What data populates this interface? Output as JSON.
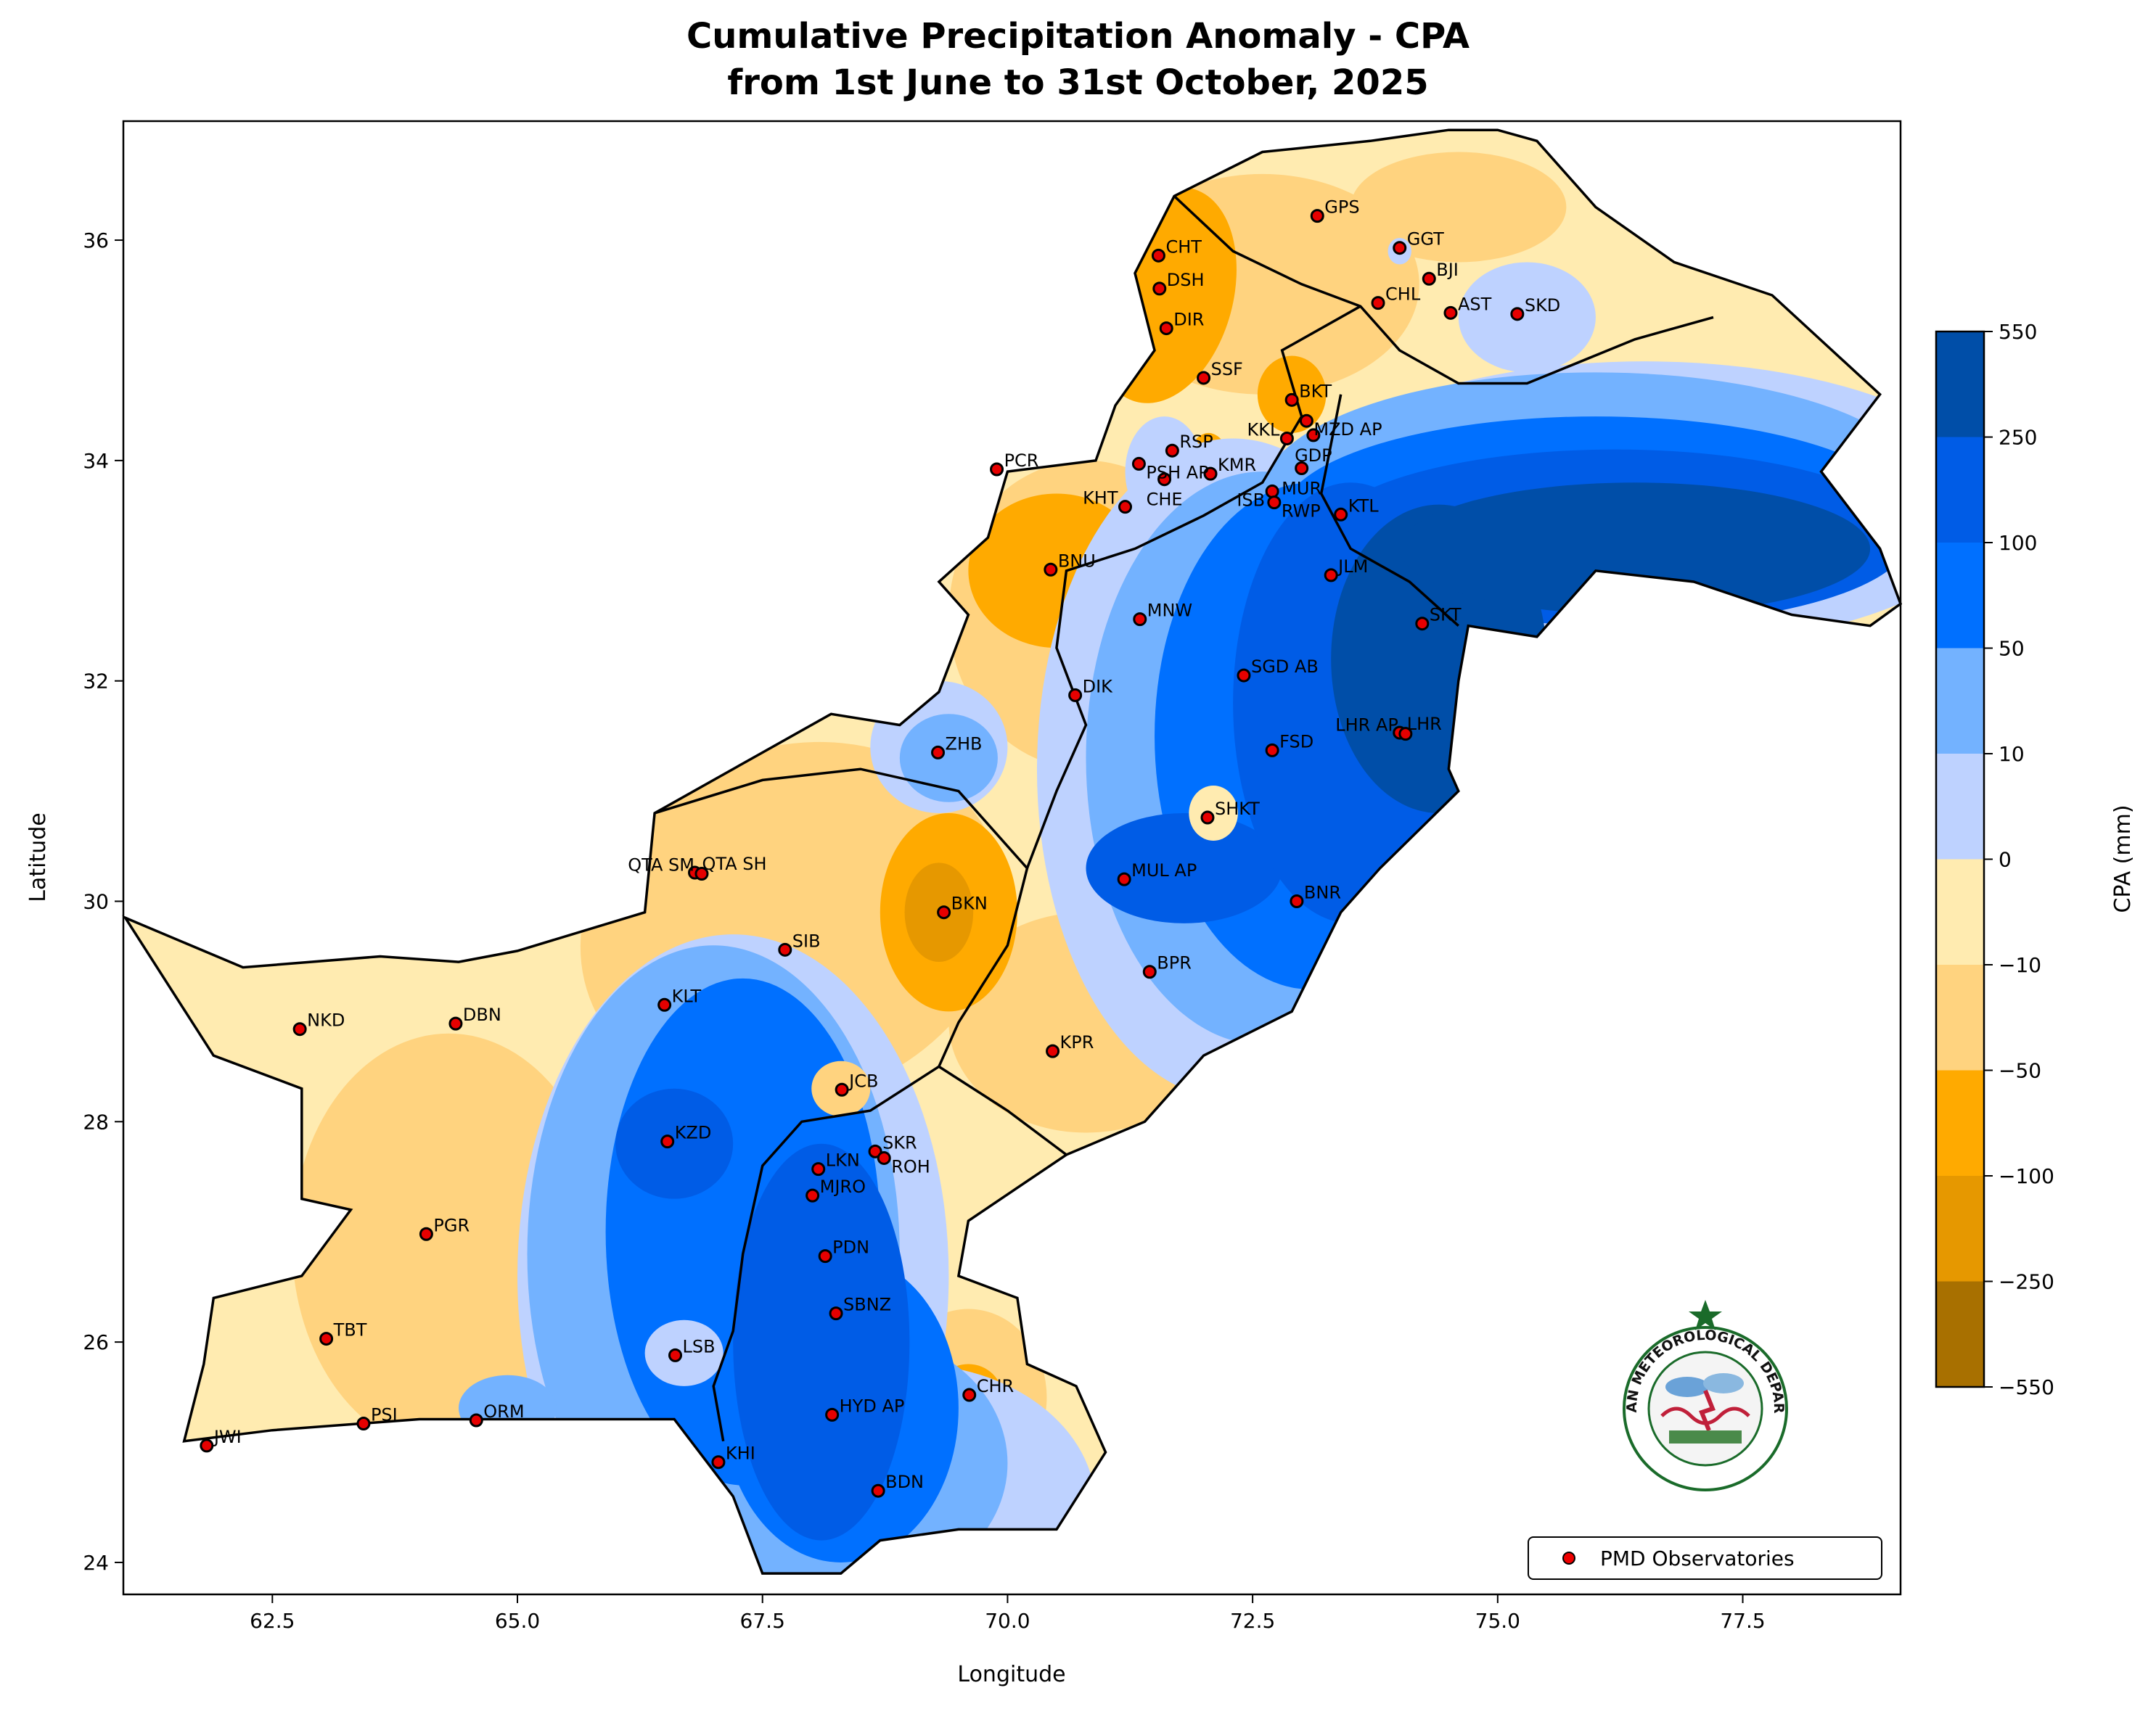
{
  "title": {
    "line1": "Cumulative Precipitation Anomaly - CPA",
    "line2": "from 1st June to 31st October, 2025"
  },
  "chart_data": {
    "type": "map",
    "title": "Cumulative Precipitation Anomaly - CPA from 1st June to 31st October, 2025",
    "xlabel": "Longitude",
    "ylabel": "Latitude",
    "xlim": [
      60.98,
      79.11
    ],
    "ylim": [
      23.71,
      37.08
    ],
    "xticks": [
      "62.5",
      "65.0",
      "67.5",
      "70.0",
      "72.5",
      "75.0",
      "77.5"
    ],
    "yticks": [
      "24",
      "26",
      "28",
      "30",
      "32",
      "34",
      "36"
    ],
    "grid": false,
    "colorbar": {
      "label": "CPA (mm)",
      "levels": [
        "550",
        "250",
        "100",
        "50",
        "10",
        "0",
        "−10",
        "−50",
        "−100",
        "−250",
        "−550"
      ],
      "colors": [
        "#004ea8",
        "#005ce6",
        "#0070ff",
        "#73b2ff",
        "#bed2ff",
        "#ffebb0",
        "#ffd37f",
        "#ffaa00",
        "#e69800",
        "#a87000"
      ]
    },
    "legend": {
      "label": "PMD Observatories",
      "position": "bottom-right",
      "marker_color": "#e60000"
    },
    "stations": [
      {
        "name": "GPS",
        "lon": 73.16,
        "lat": 36.22
      },
      {
        "name": "GGT",
        "lon": 74.0,
        "lat": 35.93
      },
      {
        "name": "BJI",
        "lon": 74.3,
        "lat": 35.65
      },
      {
        "name": "CHL",
        "lon": 73.78,
        "lat": 35.43
      },
      {
        "name": "AST",
        "lon": 74.52,
        "lat": 35.34
      },
      {
        "name": "SKD",
        "lon": 75.2,
        "lat": 35.33
      },
      {
        "name": "CHT",
        "lon": 71.54,
        "lat": 35.86
      },
      {
        "name": "DSH",
        "lon": 71.55,
        "lat": 35.56
      },
      {
        "name": "DIR",
        "lon": 71.62,
        "lat": 35.2
      },
      {
        "name": "SSF",
        "lon": 72.0,
        "lat": 34.75
      },
      {
        "name": "BKT",
        "lon": 72.9,
        "lat": 34.55
      },
      {
        "name": "MZD AP",
        "lon": 73.05,
        "lat": 34.36
      },
      {
        "name": "KKL",
        "lon": 72.85,
        "lat": 34.2
      },
      {
        "name": "GDP",
        "lon": 73.12,
        "lat": 34.23
      },
      {
        "name": "RSP",
        "lon": 71.68,
        "lat": 34.09
      },
      {
        "name": "PSH AP",
        "lon": 71.34,
        "lat": 33.97
      },
      {
        "name": "CHE",
        "lon": 71.6,
        "lat": 33.83
      },
      {
        "name": "KMR",
        "lon": 72.07,
        "lat": 33.88
      },
      {
        "name": "PCR",
        "lon": 69.89,
        "lat": 33.92
      },
      {
        "name": "KHT",
        "lon": 71.2,
        "lat": 33.58
      },
      {
        "name": "MUR",
        "lon": 73.0,
        "lat": 33.93
      },
      {
        "name": "ISB",
        "lon": 72.7,
        "lat": 33.72
      },
      {
        "name": "RWP",
        "lon": 72.72,
        "lat": 33.62
      },
      {
        "name": "KTL",
        "lon": 73.4,
        "lat": 33.51
      },
      {
        "name": "JLM",
        "lon": 73.3,
        "lat": 32.96
      },
      {
        "name": "BNU",
        "lon": 70.44,
        "lat": 33.01
      },
      {
        "name": "MNW",
        "lon": 71.35,
        "lat": 32.56
      },
      {
        "name": "SKT",
        "lon": 74.23,
        "lat": 32.52
      },
      {
        "name": "SGD AB",
        "lon": 72.41,
        "lat": 32.05
      },
      {
        "name": "DIK",
        "lon": 70.69,
        "lat": 31.87
      },
      {
        "name": "LHR",
        "lon": 74.0,
        "lat": 31.53
      },
      {
        "name": "LHR AP",
        "lon": 74.06,
        "lat": 31.52
      },
      {
        "name": "ZHB",
        "lon": 69.29,
        "lat": 31.35
      },
      {
        "name": "FSD",
        "lon": 72.7,
        "lat": 31.37
      },
      {
        "name": "SHKT",
        "lon": 72.04,
        "lat": 30.76
      },
      {
        "name": "QTA SH",
        "lon": 66.81,
        "lat": 30.26
      },
      {
        "name": "QTA SM",
        "lon": 66.88,
        "lat": 30.25
      },
      {
        "name": "MUL AP",
        "lon": 71.19,
        "lat": 30.2
      },
      {
        "name": "BNR",
        "lon": 72.95,
        "lat": 30.0
      },
      {
        "name": "BKN",
        "lon": 69.35,
        "lat": 29.9
      },
      {
        "name": "SIB",
        "lon": 67.73,
        "lat": 29.56
      },
      {
        "name": "BPR",
        "lon": 71.45,
        "lat": 29.36
      },
      {
        "name": "KLT",
        "lon": 66.5,
        "lat": 29.06
      },
      {
        "name": "NKD",
        "lon": 62.78,
        "lat": 28.84
      },
      {
        "name": "DBN",
        "lon": 64.37,
        "lat": 28.89
      },
      {
        "name": "KPR",
        "lon": 70.46,
        "lat": 28.64
      },
      {
        "name": "JCB",
        "lon": 68.31,
        "lat": 28.29
      },
      {
        "name": "SKR",
        "lon": 68.65,
        "lat": 27.73
      },
      {
        "name": "ROH",
        "lon": 68.74,
        "lat": 27.67
      },
      {
        "name": "KZD",
        "lon": 66.53,
        "lat": 27.82
      },
      {
        "name": "LKN",
        "lon": 68.07,
        "lat": 27.57
      },
      {
        "name": "MJRO",
        "lon": 68.01,
        "lat": 27.33
      },
      {
        "name": "PGR",
        "lon": 64.07,
        "lat": 26.98
      },
      {
        "name": "PDN",
        "lon": 68.14,
        "lat": 26.78
      },
      {
        "name": "SBNZ",
        "lon": 68.25,
        "lat": 26.26
      },
      {
        "name": "TBT",
        "lon": 63.05,
        "lat": 26.03
      },
      {
        "name": "LSB",
        "lon": 66.61,
        "lat": 25.88
      },
      {
        "name": "CHR",
        "lon": 69.61,
        "lat": 25.52
      },
      {
        "name": "PSI",
        "lon": 63.43,
        "lat": 25.26
      },
      {
        "name": "ORM",
        "lon": 64.58,
        "lat": 25.29
      },
      {
        "name": "HYD AP",
        "lon": 68.21,
        "lat": 25.34
      },
      {
        "name": "JWI",
        "lon": 61.83,
        "lat": 25.06
      },
      {
        "name": "KHI",
        "lon": 67.05,
        "lat": 24.91
      },
      {
        "name": "BDN",
        "lon": 68.68,
        "lat": 24.65
      }
    ]
  },
  "logo": {
    "text": "PAKISTAN METEOROLOGICAL DEPARTMENT"
  }
}
